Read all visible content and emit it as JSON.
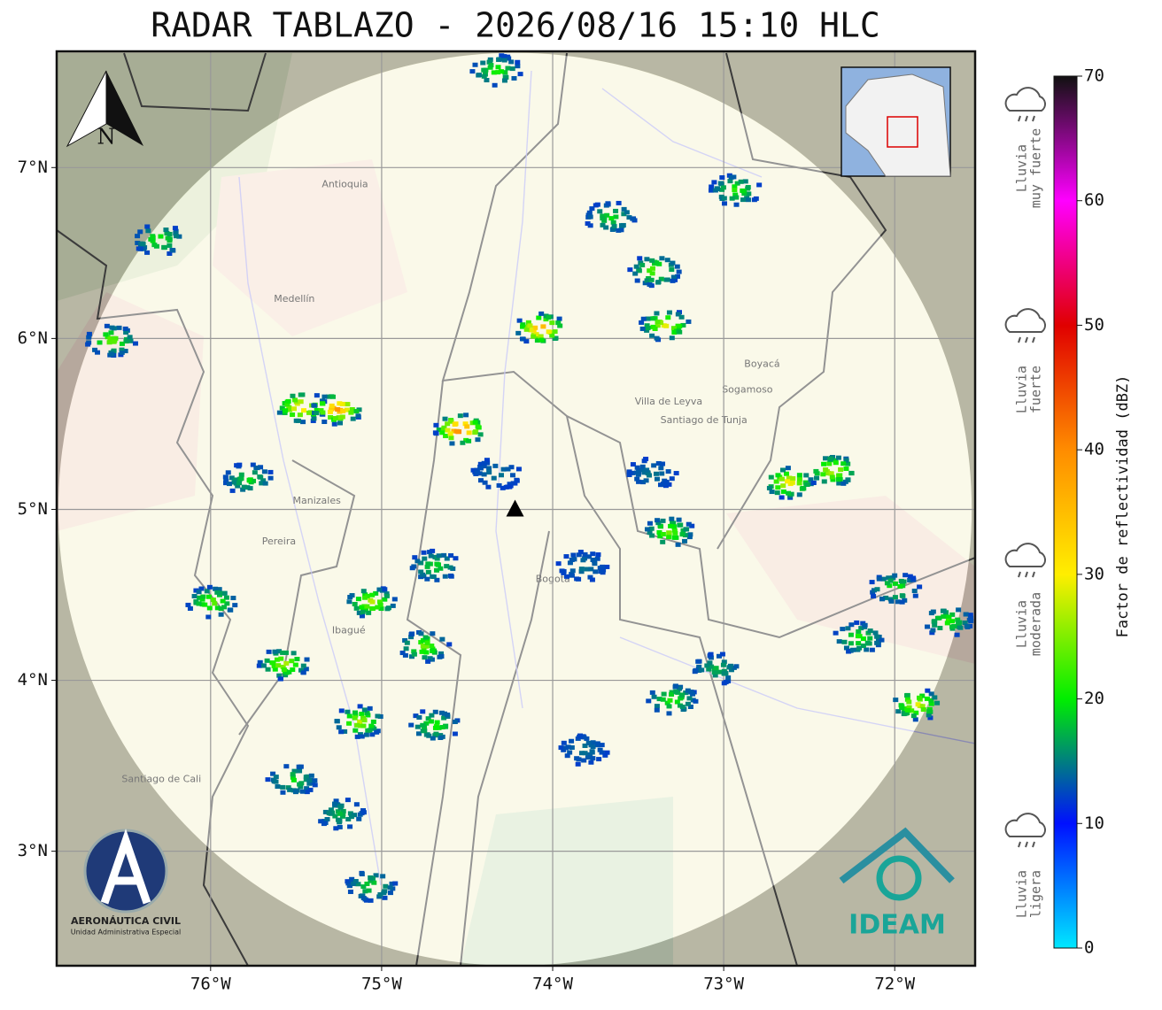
{
  "title": "RADAR TABLAZO - 2026/08/16 15:10 HLC",
  "map": {
    "xlim": [
      -76.9,
      -71.53
    ],
    "ylim": [
      2.33,
      7.68
    ],
    "xticks": [
      {
        "value": -76,
        "label": "76°W"
      },
      {
        "value": -75,
        "label": "75°W"
      },
      {
        "value": -74,
        "label": "74°W"
      },
      {
        "value": -73,
        "label": "73°W"
      },
      {
        "value": -72,
        "label": "72°W"
      }
    ],
    "yticks": [
      {
        "value": 7,
        "label": "7°N"
      },
      {
        "value": 6,
        "label": "6°N"
      },
      {
        "value": 5,
        "label": "5°N"
      },
      {
        "value": 4,
        "label": "4°N"
      },
      {
        "value": 3,
        "label": "3°N"
      }
    ],
    "grid": true,
    "north_label": "N",
    "radar_site": {
      "lon": -74.22,
      "lat": 5.0,
      "range_deg": 2.67
    },
    "cells": [
      {
        "lon": -75.47,
        "lat": 5.6,
        "dbz": 35
      },
      {
        "lon": -75.26,
        "lat": 5.59,
        "dbz": 40
      },
      {
        "lon": -74.54,
        "lat": 5.47,
        "dbz": 45
      },
      {
        "lon": -74.07,
        "lat": 6.06,
        "dbz": 40
      },
      {
        "lon": -73.34,
        "lat": 6.08,
        "dbz": 30
      },
      {
        "lon": -72.62,
        "lat": 5.16,
        "dbz": 32
      },
      {
        "lon": -75.06,
        "lat": 4.46,
        "dbz": 28
      },
      {
        "lon": -74.75,
        "lat": 4.2,
        "dbz": 25
      },
      {
        "lon": -75.99,
        "lat": 4.46,
        "dbz": 25
      },
      {
        "lon": -75.57,
        "lat": 4.1,
        "dbz": 28
      },
      {
        "lon": -76.58,
        "lat": 5.99,
        "dbz": 25
      },
      {
        "lon": -73.3,
        "lat": 3.89,
        "dbz": 22
      },
      {
        "lon": -73.04,
        "lat": 4.07,
        "dbz": 18
      },
      {
        "lon": -72.21,
        "lat": 4.25,
        "dbz": 22
      },
      {
        "lon": -71.69,
        "lat": 4.35,
        "dbz": 22
      },
      {
        "lon": -71.87,
        "lat": 3.86,
        "dbz": 30
      },
      {
        "lon": -73.42,
        "lat": 5.21,
        "dbz": 15
      },
      {
        "lon": -73.32,
        "lat": 4.87,
        "dbz": 25
      },
      {
        "lon": -74.69,
        "lat": 4.67,
        "dbz": 20
      },
      {
        "lon": -75.13,
        "lat": 3.76,
        "dbz": 28
      },
      {
        "lon": -74.69,
        "lat": 3.74,
        "dbz": 22
      },
      {
        "lon": -75.52,
        "lat": 3.42,
        "dbz": 20
      },
      {
        "lon": -75.24,
        "lat": 3.22,
        "dbz": 18
      },
      {
        "lon": -74.33,
        "lat": 7.57,
        "dbz": 22
      },
      {
        "lon": -73.66,
        "lat": 6.71,
        "dbz": 20
      },
      {
        "lon": -73.4,
        "lat": 6.4,
        "dbz": 25
      },
      {
        "lon": -72.93,
        "lat": 6.87,
        "dbz": 22
      },
      {
        "lon": -76.3,
        "lat": 6.58,
        "dbz": 22
      },
      {
        "lon": -74.33,
        "lat": 5.21,
        "dbz": 15
      },
      {
        "lon": -75.78,
        "lat": 5.18,
        "dbz": 20
      },
      {
        "lon": -73.82,
        "lat": 4.67,
        "dbz": 15
      },
      {
        "lon": -72.36,
        "lat": 5.23,
        "dbz": 30
      },
      {
        "lon": -72.0,
        "lat": 4.54,
        "dbz": 22
      },
      {
        "lon": -75.06,
        "lat": 2.8,
        "dbz": 20
      },
      {
        "lon": -73.82,
        "lat": 3.6,
        "dbz": 15
      }
    ],
    "places": [
      {
        "name": "Medellín",
        "lon": -75.63,
        "lat": 6.23
      },
      {
        "name": "Bogotá",
        "lon": -74.1,
        "lat": 4.59
      },
      {
        "name": "Manizales",
        "lon": -75.52,
        "lat": 5.05
      },
      {
        "name": "Pereira",
        "lon": -75.7,
        "lat": 4.81
      },
      {
        "name": "Ibagué",
        "lon": -75.29,
        "lat": 4.29
      },
      {
        "name": "Santiago de Cali",
        "lon": -76.52,
        "lat": 3.42
      },
      {
        "name": "Sogamoso",
        "lon": -73.01,
        "lat": 5.7
      },
      {
        "name": "Santiago de Tunja",
        "lon": -73.37,
        "lat": 5.52
      },
      {
        "name": "Villa de Leyva",
        "lon": -73.52,
        "lat": 5.63
      },
      {
        "name": "Antioquia",
        "lon": -75.35,
        "lat": 6.9
      },
      {
        "name": "Boyacá",
        "lon": -72.88,
        "lat": 5.85
      }
    ]
  },
  "colorbar": {
    "label": "Factor de reflectividad (dBZ)",
    "lim": [
      0,
      70
    ],
    "ticks": [
      0,
      10,
      20,
      30,
      40,
      50,
      60,
      70
    ],
    "colors": [
      "#00e8ff",
      "#0010ff",
      "#00ee00",
      "#ffee00",
      "#ff8c00",
      "#e00000",
      "#ff00ff",
      "#111111"
    ]
  },
  "intensity_legend": [
    {
      "lines": [
        "Lluvia",
        "muy fuerte"
      ]
    },
    {
      "lines": [
        "Lluvia",
        "fuerte"
      ]
    },
    {
      "lines": [
        "Lluvia",
        "moderada"
      ]
    },
    {
      "lines": [
        "Lluvia",
        "ligera"
      ]
    }
  ],
  "logos": {
    "aeronautica": [
      "AERONÁUTICA CIVIL",
      "Unidad Administrativa Especial"
    ],
    "ideam": "IDEAM"
  }
}
